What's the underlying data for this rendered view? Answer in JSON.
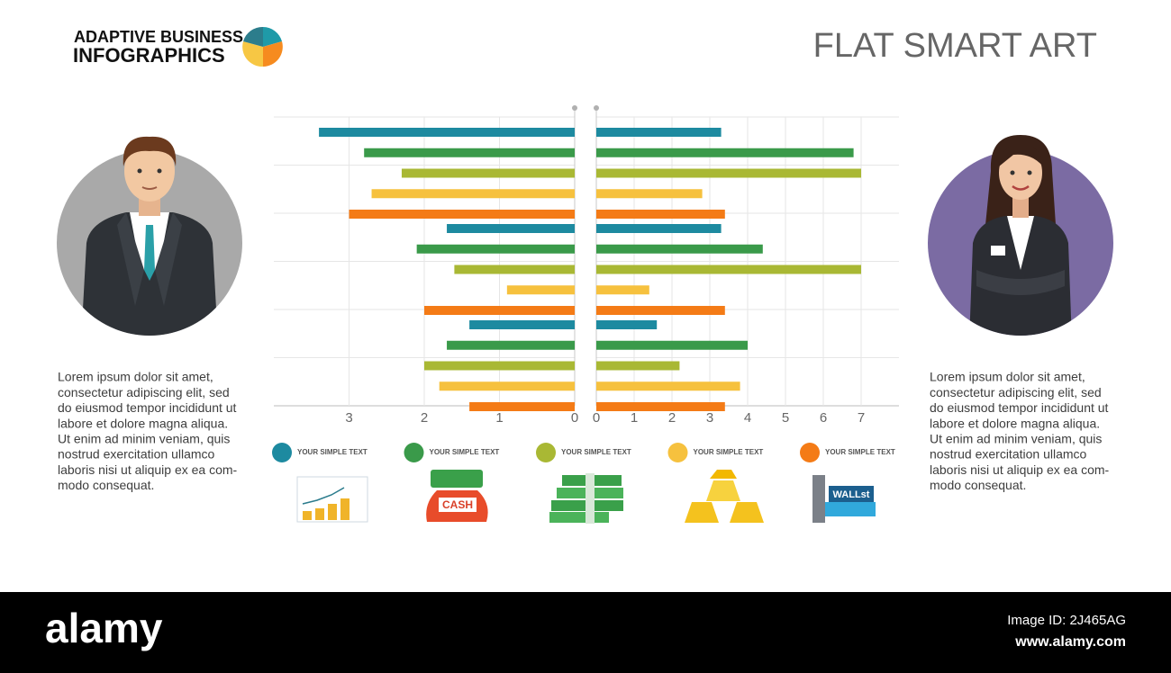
{
  "header": {
    "brand_line1": "ADAPTIVE BUSINESS",
    "brand_line2": "INFOGRAPHICS",
    "title": "FLAT SMART ART"
  },
  "chart_data": [
    {
      "type": "bar",
      "orientation": "horizontal",
      "categories": [
        null,
        null,
        null
      ],
      "series": [
        {
          "name": "YOUR SIMPLE TEXT",
          "color": "#1d8aa0",
          "values": [
            3.4,
            1.7,
            1.4
          ]
        },
        {
          "name": "YOUR SIMPLE TEXT",
          "color": "#3a9a4a",
          "values": [
            2.8,
            2.1,
            1.7
          ]
        },
        {
          "name": "YOUR SIMPLE TEXT",
          "color": "#a9b834",
          "values": [
            2.3,
            1.6,
            2.0
          ]
        },
        {
          "name": "YOUR SIMPLE TEXT",
          "color": "#f6c13e",
          "values": [
            2.7,
            0.9,
            1.8
          ]
        },
        {
          "name": "YOUR SIMPLE TEXT",
          "color": "#f47b16",
          "values": [
            3.0,
            2.0,
            1.4
          ]
        }
      ],
      "xlim": [
        4,
        0
      ],
      "xticks": [
        0,
        1,
        2,
        3
      ],
      "grid": true
    },
    {
      "type": "bar",
      "orientation": "horizontal",
      "categories": [
        null,
        null,
        null
      ],
      "series": [
        {
          "color": "#1d8aa0",
          "values": [
            3.3,
            3.3,
            1.6
          ]
        },
        {
          "color": "#3a9a4a",
          "values": [
            6.8,
            4.4,
            4.0
          ]
        },
        {
          "color": "#a9b834",
          "values": [
            7.0,
            7.0,
            2.2
          ]
        },
        {
          "color": "#f6c13e",
          "values": [
            2.8,
            1.4,
            3.8
          ]
        },
        {
          "color": "#f47b16",
          "values": [
            3.4,
            3.4,
            3.4
          ]
        }
      ],
      "xlim": [
        0,
        8
      ],
      "xticks": [
        0,
        1,
        2,
        3,
        4,
        5,
        6,
        7
      ],
      "grid": true
    }
  ],
  "left_text": [
    "Lorem ipsum dolor sit amet,",
    "consectetur adipiscing elit, sed",
    "do eiusmod tempor incididunt ut",
    "labore et dolore magna aliqua.",
    "Ut enim ad minim veniam, quis",
    "nostrud exercitation ullamco",
    "laboris nisi ut aliquip ex ea com-",
    "modo consequat."
  ],
  "right_text": [
    "Lorem ipsum dolor sit amet,",
    "consectetur adipiscing elit, sed",
    "do eiusmod tempor incididunt ut",
    "labore et dolore magna aliqua.",
    "Ut enim ad minim veniam, quis",
    "nostrud exercitation ullamco",
    "laboris nisi ut aliquip ex ea com-",
    "modo consequat."
  ],
  "icons": {
    "cash_bag": "CASH",
    "street_sign": "WALLst"
  },
  "footer": {
    "logo": "alamy",
    "image_id": "Image ID: 2J465AG",
    "url": "www.alamy.com"
  }
}
